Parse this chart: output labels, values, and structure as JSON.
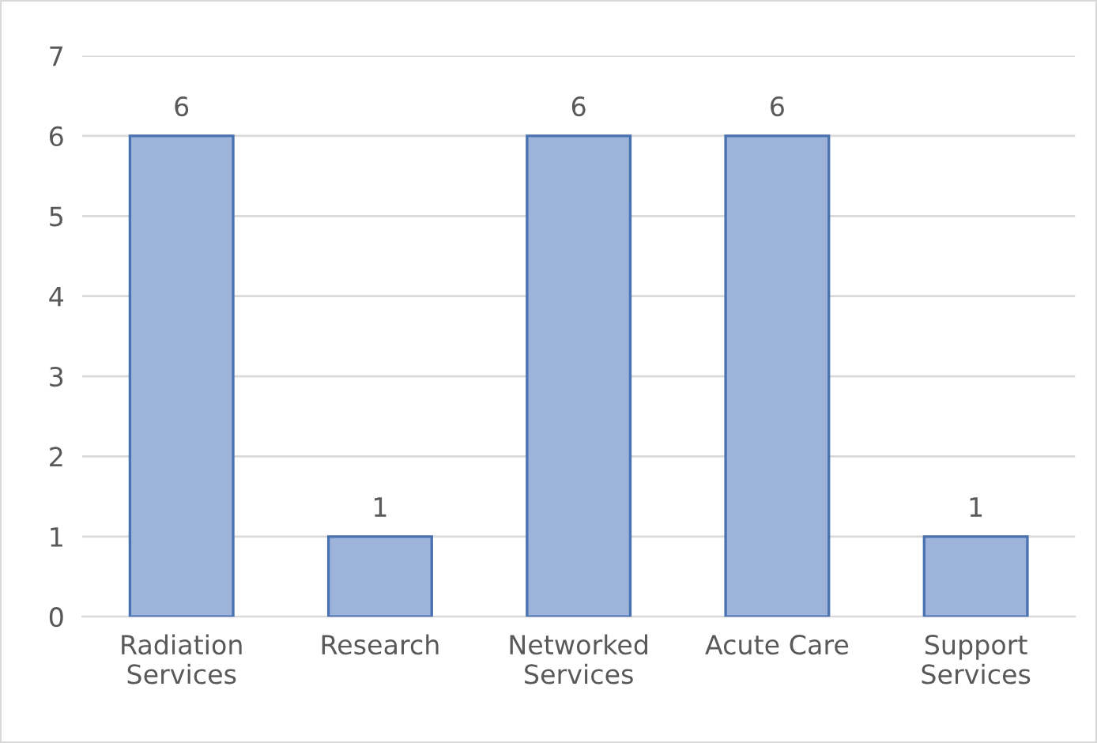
{
  "chart_data": {
    "type": "bar",
    "categories": [
      "Radiation\nServices",
      "Research",
      "Networked\nServices",
      "Acute Care",
      "Support\nServices"
    ],
    "values": [
      6,
      1,
      6,
      6,
      1
    ],
    "color": "#9db3d9",
    "ylim": [
      0,
      7
    ],
    "yticks": [
      0,
      1,
      2,
      3,
      4,
      5,
      6,
      7
    ],
    "grid": "y",
    "data_labels": true
  }
}
